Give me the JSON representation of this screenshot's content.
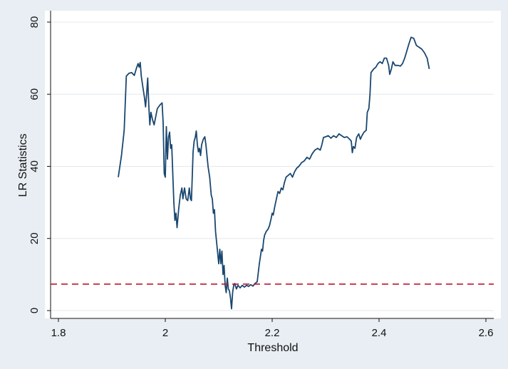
{
  "chart_data": {
    "type": "line",
    "title": "",
    "xlabel": "Threshold",
    "ylabel": "LR Statistics",
    "xlim": [
      1.8,
      2.6
    ],
    "ylim": [
      0,
      80
    ],
    "xticks": [
      1.8,
      2.0,
      2.2,
      2.4,
      2.6
    ],
    "xtick_labels": [
      "1.8",
      "2",
      "2.2",
      "2.4",
      "2.6"
    ],
    "yticks": [
      0,
      20,
      40,
      60,
      80
    ],
    "ytick_labels": [
      "0",
      "20",
      "40",
      "60",
      "80"
    ],
    "grid": "horizontal",
    "legend": "none",
    "colors": {
      "background": "#e8eef3",
      "plot_area": "#ffffff",
      "line": "#1a476f",
      "reference": "#c0152b",
      "grid": "#e3e8ed"
    },
    "series": [
      {
        "points": [
          [
            1.912,
            37
          ],
          [
            1.918,
            43
          ],
          [
            1.923,
            50
          ],
          [
            1.927,
            65
          ],
          [
            1.932,
            65.8
          ],
          [
            1.937,
            66
          ],
          [
            1.942,
            65.2
          ],
          [
            1.946,
            67.2
          ],
          [
            1.949,
            68.5
          ],
          [
            1.951,
            67.5
          ],
          [
            1.953,
            68.8
          ],
          [
            1.955,
            65
          ],
          [
            1.958,
            62
          ],
          [
            1.961,
            59
          ],
          [
            1.963,
            56.5
          ],
          [
            1.965,
            60
          ],
          [
            1.967,
            64.5
          ],
          [
            1.969,
            57
          ],
          [
            1.971,
            51.5
          ],
          [
            1.973,
            55
          ],
          [
            1.976,
            53
          ],
          [
            1.979,
            51.5
          ],
          [
            1.981,
            53
          ],
          [
            1.985,
            56
          ],
          [
            1.99,
            57
          ],
          [
            1.994,
            57.6
          ],
          [
            1.996,
            52
          ],
          [
            1.998,
            38
          ],
          [
            2.0,
            37
          ],
          [
            2.002,
            51
          ],
          [
            2.004,
            42
          ],
          [
            2.006,
            48
          ],
          [
            2.008,
            49.5
          ],
          [
            2.01,
            45
          ],
          [
            2.012,
            46
          ],
          [
            2.014,
            38
          ],
          [
            2.016,
            30
          ],
          [
            2.018,
            25
          ],
          [
            2.02,
            27
          ],
          [
            2.022,
            23
          ],
          [
            2.025,
            28
          ],
          [
            2.028,
            32
          ],
          [
            2.031,
            34
          ],
          [
            2.033,
            31
          ],
          [
            2.036,
            34
          ],
          [
            2.039,
            31
          ],
          [
            2.042,
            30.5
          ],
          [
            2.045,
            34
          ],
          [
            2.047,
            31
          ],
          [
            2.049,
            30.5
          ],
          [
            2.052,
            44
          ],
          [
            2.054,
            47
          ],
          [
            2.056,
            48
          ],
          [
            2.058,
            49.8
          ],
          [
            2.06,
            46
          ],
          [
            2.062,
            44
          ],
          [
            2.064,
            45
          ],
          [
            2.066,
            43
          ],
          [
            2.068,
            46
          ],
          [
            2.071,
            47.5
          ],
          [
            2.074,
            48.2
          ],
          [
            2.076,
            46
          ],
          [
            2.078,
            43
          ],
          [
            2.08,
            40
          ],
          [
            2.083,
            37
          ],
          [
            2.086,
            32
          ],
          [
            2.088,
            31
          ],
          [
            2.09,
            27
          ],
          [
            2.092,
            28
          ],
          [
            2.094,
            22
          ],
          [
            2.096,
            19
          ],
          [
            2.098,
            16
          ],
          [
            2.1,
            13
          ],
          [
            2.102,
            17
          ],
          [
            2.104,
            13
          ],
          [
            2.106,
            16.5
          ],
          [
            2.108,
            10
          ],
          [
            2.11,
            12.5
          ],
          [
            2.112,
            7
          ],
          [
            2.114,
            5
          ],
          [
            2.116,
            9
          ],
          [
            2.118,
            6
          ],
          [
            2.12,
            5.5
          ],
          [
            2.122,
            3.5
          ],
          [
            2.124,
            0.5
          ],
          [
            2.126,
            5
          ],
          [
            2.128,
            7
          ],
          [
            2.13,
            7.5
          ],
          [
            2.133,
            6
          ],
          [
            2.136,
            7
          ],
          [
            2.14,
            6.3
          ],
          [
            2.144,
            7
          ],
          [
            2.148,
            6.5
          ],
          [
            2.152,
            7
          ],
          [
            2.156,
            6.7
          ],
          [
            2.16,
            7.2
          ],
          [
            2.164,
            6.8
          ],
          [
            2.168,
            7.5
          ],
          [
            2.172,
            8
          ],
          [
            2.174,
            10.5
          ],
          [
            2.176,
            13
          ],
          [
            2.178,
            15
          ],
          [
            2.18,
            17
          ],
          [
            2.182,
            16.5
          ],
          [
            2.184,
            19.5
          ],
          [
            2.186,
            21
          ],
          [
            2.189,
            22
          ],
          [
            2.192,
            22.5
          ],
          [
            2.195,
            23.5
          ],
          [
            2.198,
            25.5
          ],
          [
            2.2,
            27
          ],
          [
            2.202,
            26.5
          ],
          [
            2.205,
            29
          ],
          [
            2.208,
            31
          ],
          [
            2.211,
            33
          ],
          [
            2.214,
            32.5
          ],
          [
            2.217,
            34
          ],
          [
            2.22,
            33.5
          ],
          [
            2.223,
            35.5
          ],
          [
            2.226,
            37
          ],
          [
            2.23,
            37.5
          ],
          [
            2.234,
            38
          ],
          [
            2.238,
            37
          ],
          [
            2.242,
            38.5
          ],
          [
            2.246,
            39.5
          ],
          [
            2.25,
            40
          ],
          [
            2.255,
            41
          ],
          [
            2.26,
            41.5
          ],
          [
            2.265,
            42.5
          ],
          [
            2.27,
            42
          ],
          [
            2.275,
            43.5
          ],
          [
            2.28,
            44.5
          ],
          [
            2.285,
            45
          ],
          [
            2.29,
            44.5
          ],
          [
            2.293,
            46
          ],
          [
            2.296,
            48
          ],
          [
            2.3,
            48.2
          ],
          [
            2.305,
            48.5
          ],
          [
            2.31,
            47.8
          ],
          [
            2.315,
            48.5
          ],
          [
            2.32,
            48
          ],
          [
            2.325,
            49
          ],
          [
            2.33,
            48.5
          ],
          [
            2.335,
            48
          ],
          [
            2.34,
            48.2
          ],
          [
            2.345,
            47.5
          ],
          [
            2.348,
            47
          ],
          [
            2.35,
            43.8
          ],
          [
            2.352,
            45.5
          ],
          [
            2.355,
            45
          ],
          [
            2.358,
            48
          ],
          [
            2.362,
            49
          ],
          [
            2.365,
            47.5
          ],
          [
            2.368,
            48.5
          ],
          [
            2.372,
            49.5
          ],
          [
            2.376,
            50
          ],
          [
            2.378,
            55
          ],
          [
            2.381,
            56
          ],
          [
            2.383,
            60
          ],
          [
            2.385,
            66
          ],
          [
            2.39,
            67
          ],
          [
            2.394,
            67.5
          ],
          [
            2.398,
            68.5
          ],
          [
            2.402,
            69
          ],
          [
            2.406,
            68.5
          ],
          [
            2.41,
            70
          ],
          [
            2.414,
            70
          ],
          [
            2.418,
            68
          ],
          [
            2.42,
            65.5
          ],
          [
            2.423,
            67
          ],
          [
            2.426,
            69
          ],
          [
            2.43,
            68
          ],
          [
            2.435,
            68
          ],
          [
            2.44,
            67.8
          ],
          [
            2.444,
            68.5
          ],
          [
            2.448,
            70
          ],
          [
            2.452,
            72
          ],
          [
            2.456,
            74
          ],
          [
            2.46,
            75.8
          ],
          [
            2.465,
            75.5
          ],
          [
            2.47,
            73.5
          ],
          [
            2.475,
            73
          ],
          [
            2.48,
            72.5
          ],
          [
            2.485,
            71.5
          ],
          [
            2.49,
            70
          ],
          [
            2.494,
            67
          ]
        ]
      }
    ],
    "reference_line": {
      "y": 7.35,
      "style": "dashed"
    }
  }
}
